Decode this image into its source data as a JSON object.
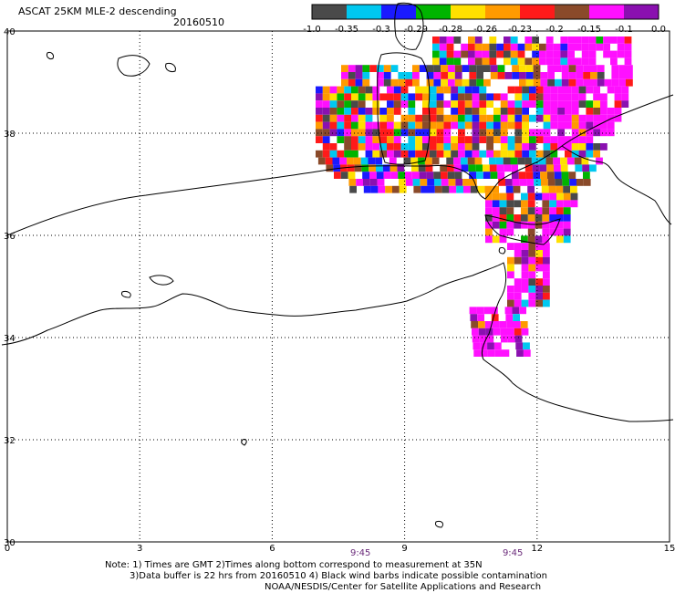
{
  "header": {
    "title": "ASCAT 25KM MLE-2 descending",
    "date": "20160510"
  },
  "colorbar": {
    "colors": [
      "#4a4a4a",
      "#00c8f0",
      "#1a1aff",
      "#00b400",
      "#ffe000",
      "#ff9a00",
      "#ff1a1a",
      "#8a4a2a",
      "#ff10ff",
      "#8a10b0"
    ],
    "labels": [
      "-1.0",
      "-0.35",
      "-0.3",
      "-0.29",
      "-0.28",
      "-0.26",
      "-0.23",
      "-0.2",
      "-0.15",
      "-0.1",
      "0.0"
    ]
  },
  "axes": {
    "lon_ticks": [
      0,
      3,
      6,
      9,
      12,
      15
    ],
    "lon_labels": [
      "0",
      "3",
      "6",
      "9",
      "12",
      "15"
    ],
    "lat_ticks": [
      30,
      32,
      34,
      36,
      38,
      40
    ],
    "lat_labels": [
      "30",
      "32",
      "34",
      "36",
      "38",
      "40"
    ],
    "xlim": [
      0,
      15
    ],
    "ylim": [
      30,
      40
    ],
    "grid": true
  },
  "time_labels": [
    {
      "lon": 8.0,
      "text": "9:45"
    },
    {
      "lon": 11.45,
      "text": "9:45"
    }
  ],
  "notes": {
    "line1": "Note: 1) Times are GMT 2)Times along bottom correspond to measurement at 35N",
    "line2": "3)Data buffer is 22 hrs from 20160510 4) Black wind barbs indicate possible contamination",
    "line3": "NOAA/NESDIS/Center for Satellite Applications and Research"
  }
}
